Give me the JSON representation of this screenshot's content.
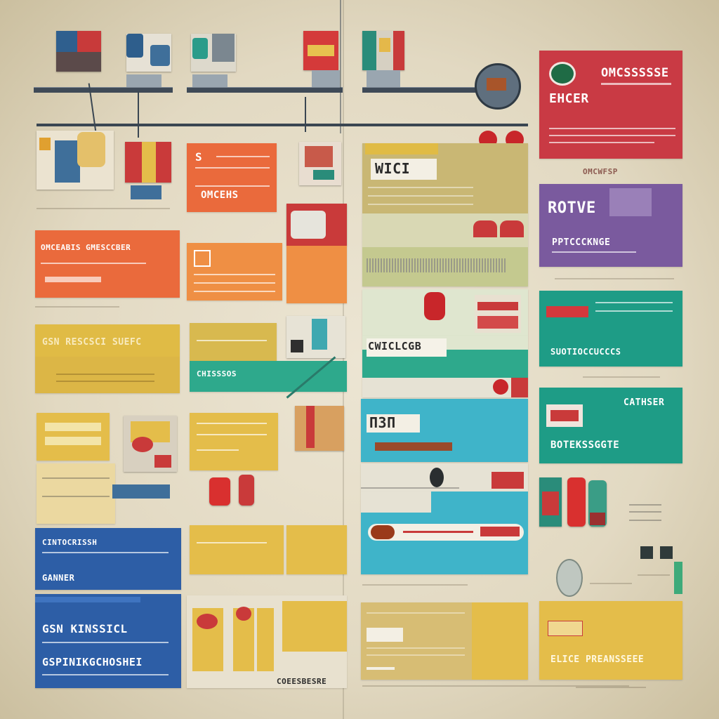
{
  "colors": {
    "red": "#c93a44",
    "orange": "#ea6a3c",
    "orange_light": "#ef8f44",
    "yellow": "#e0bb45",
    "purple": "#7a5a9e",
    "teal": "#1e9c86",
    "blue": "#2d5ea6",
    "cyan": "#3fb4c9",
    "khaki": "#c9b774",
    "background": "#e6dfcc"
  },
  "cards": {
    "red_top_right": {
      "title": "OMCSSSSSE",
      "subtitle": "EHCER",
      "footer": "OMCWFSP"
    },
    "purple_right": {
      "title": "ROTVE",
      "subtitle": "PPTCCCKNGE"
    },
    "teal_right_upper": {
      "text": "SUOTIOCCUCCCS"
    },
    "teal_right_lower": {
      "title": "CATHSER",
      "text": "BOTEKSSGGTE"
    },
    "yellow_bottom_right": {
      "text": "ELICE PREANSSEEE"
    },
    "khaki_center": {
      "label": "WICI"
    },
    "green_center": {
      "label": "CWICLCGB"
    },
    "cyan_center": {
      "label": "ПЗП"
    },
    "orange_top": {
      "title": "OMCEHS",
      "letter": "S"
    },
    "orange_left": {
      "title": "OMCEABIS GMESCCBER"
    },
    "yellow_left": {
      "title": "GSN RESCSCI SUEFC"
    },
    "blue_left_upper": {
      "title": "CINTOCRISSH",
      "text": "GANNER"
    },
    "blue_left_lower": {
      "title": "GSN KINSSICL",
      "text": "GSPINIKGCHOSHEI"
    },
    "green_mid": {
      "text": "CHISSSOS"
    },
    "bottom_strip": {
      "text": "COEESBESRE"
    }
  }
}
